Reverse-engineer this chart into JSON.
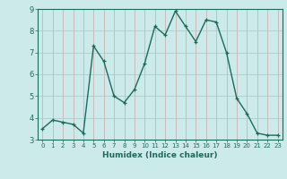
{
  "x": [
    0,
    1,
    2,
    3,
    4,
    5,
    6,
    7,
    8,
    9,
    10,
    11,
    12,
    13,
    14,
    15,
    16,
    17,
    18,
    19,
    20,
    21,
    22,
    23
  ],
  "y": [
    3.5,
    3.9,
    3.8,
    3.7,
    3.3,
    7.3,
    6.6,
    5.0,
    4.7,
    5.3,
    6.5,
    8.2,
    7.8,
    8.9,
    8.2,
    7.5,
    8.5,
    8.4,
    7.0,
    4.9,
    4.2,
    3.3,
    3.2,
    3.2
  ],
  "xlabel": "Humidex (Indice chaleur)",
  "xlim": [
    -0.5,
    23.5
  ],
  "ylim": [
    3,
    9
  ],
  "yticks": [
    3,
    4,
    5,
    6,
    7,
    8,
    9
  ],
  "xticks": [
    0,
    1,
    2,
    3,
    4,
    5,
    6,
    7,
    8,
    9,
    10,
    11,
    12,
    13,
    14,
    15,
    16,
    17,
    18,
    19,
    20,
    21,
    22,
    23
  ],
  "line_color": "#1a6b5e",
  "marker": "+",
  "bg_color": "#cceaea",
  "grid_color_major": "#b0c8c8",
  "grid_color_minor": "#c8b8b8"
}
